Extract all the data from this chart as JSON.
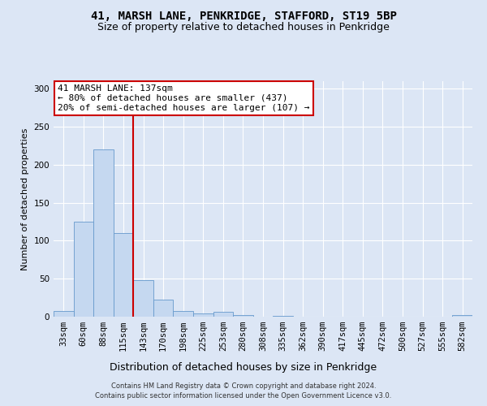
{
  "title": "41, MARSH LANE, PENKRIDGE, STAFFORD, ST19 5BP",
  "subtitle": "Size of property relative to detached houses in Penkridge",
  "xlabel": "Distribution of detached houses by size in Penkridge",
  "ylabel": "Number of detached properties",
  "categories": [
    "33sqm",
    "60sqm",
    "88sqm",
    "115sqm",
    "143sqm",
    "170sqm",
    "198sqm",
    "225sqm",
    "253sqm",
    "280sqm",
    "308sqm",
    "335sqm",
    "362sqm",
    "390sqm",
    "417sqm",
    "445sqm",
    "472sqm",
    "500sqm",
    "527sqm",
    "555sqm",
    "582sqm"
  ],
  "values": [
    8,
    125,
    220,
    110,
    48,
    22,
    8,
    4,
    6,
    2,
    0,
    1,
    0,
    0,
    0,
    0,
    0,
    0,
    0,
    0,
    2
  ],
  "bar_color": "#c5d8f0",
  "bar_edge_color": "#6699cc",
  "ylim": [
    0,
    310
  ],
  "yticks": [
    0,
    50,
    100,
    150,
    200,
    250,
    300
  ],
  "vline_x_index": 4,
  "vline_color": "#cc0000",
  "annotation_text": "41 MARSH LANE: 137sqm\n← 80% of detached houses are smaller (437)\n20% of semi-detached houses are larger (107) →",
  "annotation_box_color": "#ffffff",
  "annotation_box_edge_color": "#cc0000",
  "footer_text": "Contains HM Land Registry data © Crown copyright and database right 2024.\nContains public sector information licensed under the Open Government Licence v3.0.",
  "bg_color": "#dce6f5",
  "title_fontsize": 10,
  "subtitle_fontsize": 9,
  "ylabel_fontsize": 8,
  "xlabel_fontsize": 9,
  "annotation_fontsize": 8,
  "tick_fontsize": 7.5,
  "footer_fontsize": 6
}
